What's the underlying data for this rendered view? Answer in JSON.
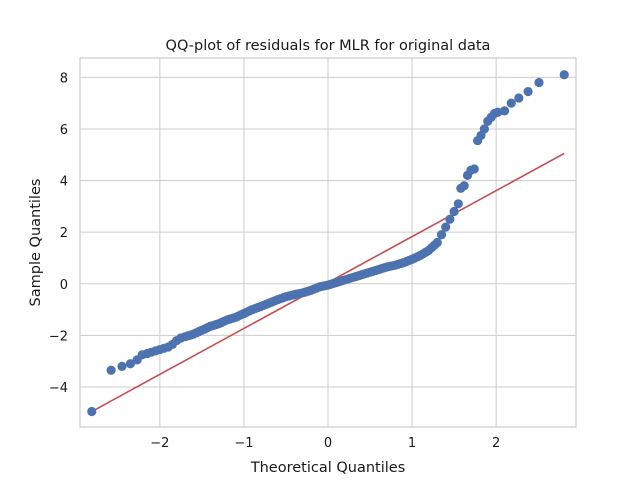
{
  "chart_data": {
    "type": "scatter",
    "title": "QQ-plot of residuals for MLR for original data",
    "xlabel": "Theoretical Quantiles",
    "ylabel": "Sample Quantiles",
    "xlim": [
      -2.95,
      2.95
    ],
    "ylim": [
      -5.55,
      8.75
    ],
    "xticks": [
      -2,
      -1,
      0,
      1,
      2
    ],
    "yticks": [
      -4,
      -2,
      0,
      2,
      4,
      6,
      8
    ],
    "xtick_labels": [
      "−2",
      "−1",
      "0",
      "1",
      "2"
    ],
    "ytick_labels": [
      "−4",
      "−2",
      "0",
      "2",
      "4",
      "6",
      "8"
    ],
    "grid": true,
    "colors": {
      "points": "#4c72b0",
      "line": "#c44e52",
      "grid": "#cccccc"
    },
    "series": [
      {
        "kind": "points",
        "x": [
          -2.81,
          -2.58,
          -2.45,
          -2.35,
          -2.27,
          -2.21,
          -2.15,
          -2.1,
          -2.05,
          -2.0,
          -1.95,
          -1.9,
          -1.85,
          -1.8,
          -1.75,
          -1.7,
          -1.6,
          -1.5,
          -1.4,
          -1.3,
          -1.2,
          -1.1,
          -1.0,
          -0.9,
          -0.8,
          -0.7,
          -0.6,
          -0.5,
          -0.4,
          -0.3,
          -0.2,
          -0.1,
          0.0,
          0.1,
          0.2,
          0.3,
          0.4,
          0.5,
          0.6,
          0.7,
          0.8,
          0.9,
          1.0,
          1.1,
          1.2,
          1.3,
          1.35,
          1.4,
          1.45,
          1.5,
          1.55,
          1.58,
          1.62,
          1.66,
          1.7,
          1.74,
          1.78,
          1.82,
          1.86,
          1.9,
          1.94,
          1.98,
          2.02,
          2.1,
          2.18,
          2.27,
          2.38,
          2.51,
          2.81
        ],
        "y": [
          -4.95,
          -3.35,
          -3.2,
          -3.1,
          -2.95,
          -2.75,
          -2.7,
          -2.65,
          -2.6,
          -2.55,
          -2.5,
          -2.45,
          -2.35,
          -2.2,
          -2.1,
          -2.05,
          -1.95,
          -1.8,
          -1.65,
          -1.55,
          -1.4,
          -1.3,
          -1.15,
          -1.0,
          -0.88,
          -0.75,
          -0.62,
          -0.5,
          -0.42,
          -0.35,
          -0.25,
          -0.12,
          -0.05,
          0.05,
          0.15,
          0.25,
          0.35,
          0.45,
          0.55,
          0.65,
          0.72,
          0.82,
          0.95,
          1.1,
          1.3,
          1.6,
          1.9,
          2.2,
          2.5,
          2.8,
          3.1,
          3.7,
          3.8,
          4.2,
          4.4,
          4.45,
          5.55,
          5.75,
          6.0,
          6.3,
          6.45,
          6.6,
          6.65,
          6.7,
          7.0,
          7.2,
          7.45,
          7.8,
          8.1
        ]
      },
      {
        "kind": "reference-line",
        "x": [
          -2.81,
          2.81
        ],
        "y": [
          -4.95,
          5.05
        ]
      }
    ]
  }
}
